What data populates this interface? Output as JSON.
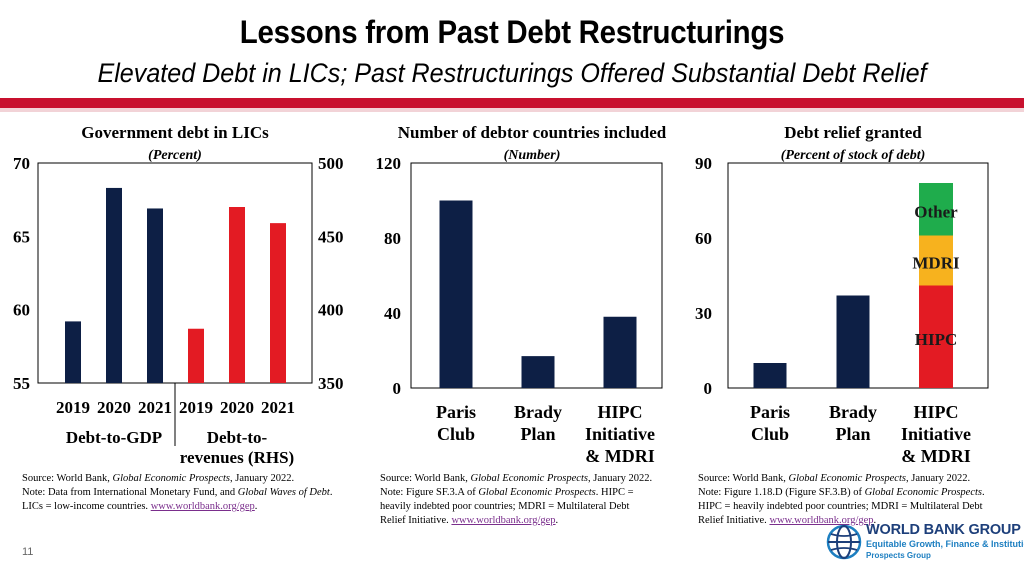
{
  "header": {
    "title": "Lessons from Past Debt Restructurings",
    "subtitle": "Elevated Debt in LICs; Past Restructurings Offered Substantial Debt Relief"
  },
  "colors": {
    "navy": "#0d1f45",
    "red": "#e31b23",
    "orange": "#f7b21e",
    "green": "#1fac4c",
    "accent": "#c8102e",
    "link": "#7a2e8c"
  },
  "chart_data": [
    {
      "type": "bar",
      "title": "Government debt in LICs",
      "subtitle": "(Percent)",
      "left_axis": {
        "ylim": [
          55,
          70
        ],
        "ticks": [
          "55",
          "60",
          "65",
          "70"
        ]
      },
      "right_axis": {
        "ylim": [
          350,
          500
        ],
        "ticks": [
          "350",
          "400",
          "450",
          "500"
        ]
      },
      "groups": [
        {
          "label": "Debt-to-GDP",
          "axis": "left",
          "color": "navy",
          "categories": [
            "2019",
            "2020",
            "2021"
          ],
          "values": [
            59.2,
            68.3,
            66.9
          ]
        },
        {
          "label": "Debt-to-revenues (RHS)",
          "label_lines": [
            "Debt-to-",
            "revenues (RHS)"
          ],
          "axis": "right",
          "color": "red",
          "categories": [
            "2019",
            "2020",
            "2021"
          ],
          "values": [
            387,
            470,
            459
          ]
        }
      ]
    },
    {
      "type": "bar",
      "title": "Number of debtor countries included",
      "subtitle": "(Number)",
      "ylim": [
        0,
        120
      ],
      "yticks": [
        "0",
        "40",
        "80",
        "120"
      ],
      "categories": [
        [
          "Paris",
          "Club"
        ],
        [
          "Brady",
          "Plan"
        ],
        [
          "HIPC",
          "Initiative",
          "& MDRI"
        ]
      ],
      "values": [
        100,
        17,
        38
      ]
    },
    {
      "type": "bar",
      "title": "Debt relief granted",
      "subtitle": "(Percent of stock of debt)",
      "ylim": [
        0,
        90
      ],
      "yticks": [
        "0",
        "30",
        "60",
        "90"
      ],
      "categories": [
        [
          "Paris",
          "Club"
        ],
        [
          "Brady",
          "Plan"
        ],
        [
          "HIPC",
          "Initiative",
          "& MDRI"
        ]
      ],
      "values": [
        10,
        37,
        null
      ],
      "stack": [
        {
          "name": "HIPC",
          "value": 41,
          "color": "red"
        },
        {
          "name": "MDRI",
          "value": 20,
          "color": "orange"
        },
        {
          "name": "Other",
          "value": 21,
          "color": "green"
        }
      ]
    }
  ],
  "sources": [
    [
      [
        {
          "t": "Source: World Bank, "
        },
        {
          "t": "Global Economic Prospects",
          "i": true
        },
        {
          "t": ", January 2022."
        }
      ],
      [
        {
          "t": "Note: Data from International Monetary Fund, and "
        },
        {
          "t": "Global Waves of Debt",
          "i": true
        },
        {
          "t": "."
        }
      ],
      [
        {
          "t": "LICs = low-income countries. "
        },
        {
          "t": "www.worldbank.org/gep",
          "link": true
        },
        {
          "t": "."
        }
      ]
    ],
    [
      [
        {
          "t": "Source: World Bank, "
        },
        {
          "t": "Global Economic Prospects",
          "i": true
        },
        {
          "t": ", January 2022."
        }
      ],
      [
        {
          "t": "Note: Figure SF.3.A of "
        },
        {
          "t": "Global Economic Prospects",
          "i": true
        },
        {
          "t": ". HIPC ="
        }
      ],
      [
        {
          "t": "heavily indebted poor countries; MDRI = Multilateral Debt"
        }
      ],
      [
        {
          "t": "Relief Initiative. "
        },
        {
          "t": "www.worldbank.org/gep",
          "link": true
        },
        {
          "t": "."
        }
      ]
    ],
    [
      [
        {
          "t": "Source: World Bank, "
        },
        {
          "t": "Global Economic Prospects",
          "i": true
        },
        {
          "t": ", January 2022."
        }
      ],
      [
        {
          "t": "Note: Figure 1.18.D (Figure SF.3.B) of "
        },
        {
          "t": "Global Economic Prospects",
          "i": true
        },
        {
          "t": "."
        }
      ],
      [
        {
          "t": "HIPC = heavily indebted poor countries; MDRI = Multilateral Debt"
        }
      ],
      [
        {
          "t": "Relief Initiative. "
        },
        {
          "t": "www.worldbank.org/gep",
          "link": true
        },
        {
          "t": "."
        }
      ]
    ]
  ],
  "footer": {
    "page_number": "11",
    "logo_line1": "WORLD BANK GROUP",
    "logo_line2": "Equitable Growth, Finance & Institutions",
    "logo_line3": "Prospects Group"
  }
}
